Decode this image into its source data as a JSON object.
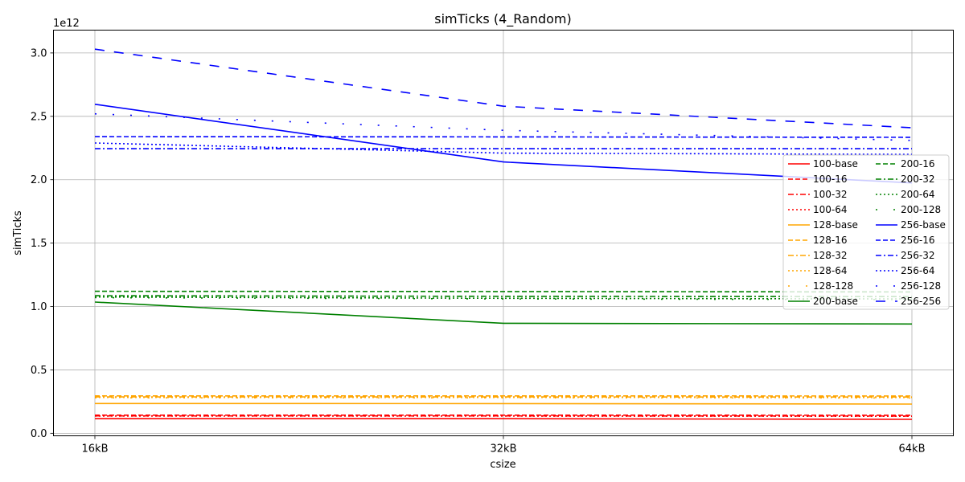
{
  "chart_data": {
    "type": "line",
    "title": "simTicks (4_Random)",
    "xlabel": "csize",
    "ylabel": "simTicks",
    "y_offset_text": "1e12",
    "categories": [
      "16kB",
      "32kB",
      "64kB"
    ],
    "yticks": [
      "0.0",
      "0.5",
      "1.0",
      "1.5",
      "2.0",
      "2.5",
      "3.0"
    ],
    "ylim": [
      -0.02,
      3.18
    ],
    "grid": true,
    "legend_position": "right",
    "colors": {
      "100": "#ff0000",
      "128": "#ffa500",
      "200": "#008000",
      "256": "#0000ff"
    },
    "series": [
      {
        "name": "100-base",
        "group": "100",
        "style": "solid",
        "values": [
          0.115,
          0.115,
          0.11
        ]
      },
      {
        "name": "100-16",
        "group": "100",
        "style": "dashed",
        "values": [
          0.143,
          0.143,
          0.142
        ]
      },
      {
        "name": "100-32",
        "group": "100",
        "style": "dashdot",
        "values": [
          0.137,
          0.137,
          0.136
        ]
      },
      {
        "name": "100-64",
        "group": "100",
        "style": "dotted",
        "values": [
          0.135,
          0.135,
          0.134
        ]
      },
      {
        "name": "128-base",
        "group": "128",
        "style": "solid",
        "values": [
          0.235,
          0.234,
          0.23
        ]
      },
      {
        "name": "128-16",
        "group": "128",
        "style": "dashed",
        "values": [
          0.295,
          0.295,
          0.294
        ]
      },
      {
        "name": "128-32",
        "group": "128",
        "style": "dashdot",
        "values": [
          0.287,
          0.287,
          0.286
        ]
      },
      {
        "name": "128-64",
        "group": "128",
        "style": "dotted",
        "values": [
          0.283,
          0.283,
          0.282
        ]
      },
      {
        "name": "128-128",
        "group": "128",
        "style": "sparse",
        "values": [
          0.28,
          0.28,
          0.279
        ]
      },
      {
        "name": "200-base",
        "group": "200",
        "style": "solid",
        "values": [
          1.035,
          0.868,
          0.862
        ]
      },
      {
        "name": "200-16",
        "group": "200",
        "style": "dashed",
        "values": [
          1.12,
          1.118,
          1.115
        ]
      },
      {
        "name": "200-32",
        "group": "200",
        "style": "dashdot",
        "values": [
          1.085,
          1.08,
          1.078
        ]
      },
      {
        "name": "200-64",
        "group": "200",
        "style": "dotted",
        "values": [
          1.075,
          1.065,
          1.06
        ]
      },
      {
        "name": "200-128",
        "group": "200",
        "style": "sparse",
        "values": [
          1.07,
          1.06,
          1.055
        ]
      },
      {
        "name": "256-base",
        "group": "256",
        "style": "solid",
        "values": [
          2.595,
          2.14,
          1.975
        ]
      },
      {
        "name": "256-16",
        "group": "256",
        "style": "dashed",
        "values": [
          2.34,
          2.338,
          2.335
        ]
      },
      {
        "name": "256-32",
        "group": "256",
        "style": "dashdot",
        "values": [
          2.245,
          2.245,
          2.245
        ]
      },
      {
        "name": "256-64",
        "group": "256",
        "style": "dotted",
        "values": [
          2.29,
          2.21,
          2.2
        ]
      },
      {
        "name": "256-128",
        "group": "256",
        "style": "sparse",
        "values": [
          2.52,
          2.39,
          2.31
        ]
      },
      {
        "name": "256-256",
        "group": "256",
        "style": "longdash",
        "values": [
          3.03,
          2.58,
          2.41
        ]
      }
    ]
  }
}
